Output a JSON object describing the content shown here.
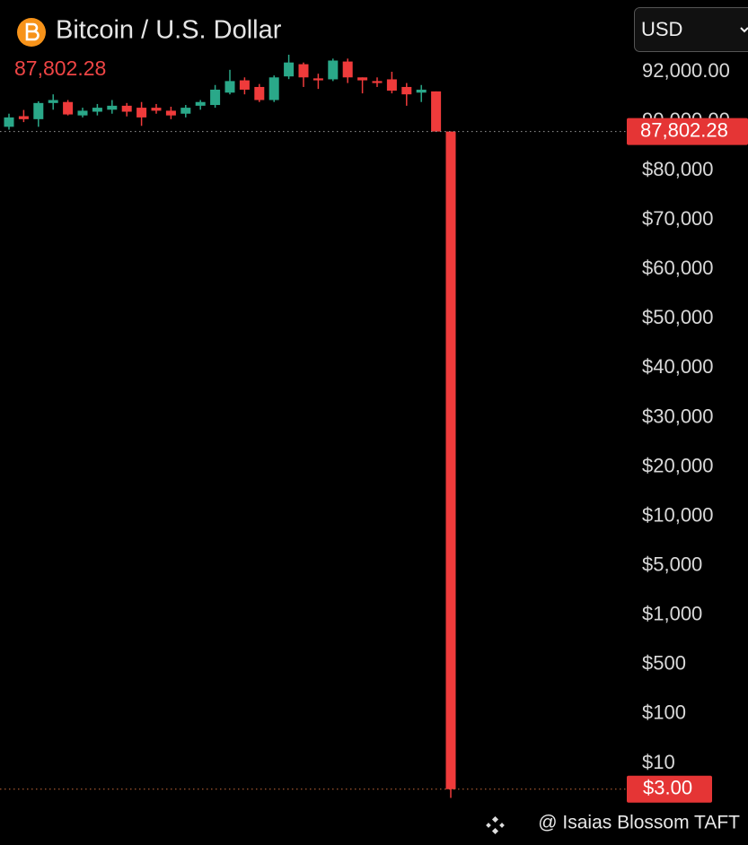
{
  "chart_data": {
    "type": "candlestick",
    "title": "Bitcoin / U.S. Dollar",
    "last_price": {
      "value": 87802.28,
      "label": "87,802.28"
    },
    "low_price": {
      "value": 3,
      "label": "$3.00"
    },
    "up_color": "#2aa889",
    "down_color": "#ef3b3b",
    "log_scale": true,
    "open": [
      88800,
      90200,
      90080,
      90730,
      90770,
      90230,
      90380,
      90460,
      90620,
      90540,
      90540,
      90420,
      90300,
      90620,
      90650,
      91150,
      91650,
      91380,
      90850,
      91810,
      92310,
      91730,
      91690,
      92420,
      91770,
      91620,
      91690,
      91380,
      91150,
      91200,
      87802
    ],
    "high": [
      90300,
      90450,
      90800,
      91080,
      90850,
      90540,
      90690,
      90850,
      90730,
      90770,
      90690,
      90580,
      90650,
      90850,
      91460,
      92080,
      91770,
      91500,
      91850,
      92700,
      92380,
      91920,
      92540,
      92540,
      91770,
      91770,
      92000,
      91540,
      91460,
      91200,
      87802
    ],
    "low": [
      88200,
      89800,
      88800,
      90460,
      90230,
      90150,
      90230,
      90300,
      90190,
      89000,
      90300,
      90080,
      90150,
      90460,
      90540,
      91080,
      91080,
      90770,
      90770,
      91700,
      91380,
      91300,
      91620,
      91540,
      91120,
      91380,
      91120,
      90620,
      90770,
      87802,
      2
    ],
    "close": [
      90150,
      90080,
      90730,
      90850,
      90270,
      90420,
      90540,
      90620,
      90380,
      90150,
      90420,
      90230,
      90540,
      90770,
      91270,
      91620,
      91270,
      90850,
      91770,
      92380,
      91770,
      91650,
      92460,
      91770,
      91650,
      91540,
      91230,
      91080,
      91270,
      87802,
      3
    ],
    "yticks": [
      {
        "value": 92000,
        "label": "92,000.00"
      },
      {
        "value": 90000,
        "label": "90,000.00"
      },
      {
        "value": 80000,
        "label": "$80,000"
      },
      {
        "value": 70000,
        "label": "$70,000"
      },
      {
        "value": 60000,
        "label": "$60,000"
      },
      {
        "value": 50000,
        "label": "$50,000"
      },
      {
        "value": 40000,
        "label": "$40,000"
      },
      {
        "value": 30000,
        "label": "$30,000"
      },
      {
        "value": 20000,
        "label": "$20,000"
      },
      {
        "value": 10000,
        "label": "$10,000"
      },
      {
        "value": 5000,
        "label": "$5,000"
      },
      {
        "value": 1000,
        "label": "$1,000"
      },
      {
        "value": 500,
        "label": "$500"
      },
      {
        "value": 100,
        "label": "$100"
      },
      {
        "value": 10,
        "label": "$10"
      }
    ]
  },
  "ui": {
    "currency": "USD",
    "watermark": "@ Isaias Blossom TAFT"
  }
}
